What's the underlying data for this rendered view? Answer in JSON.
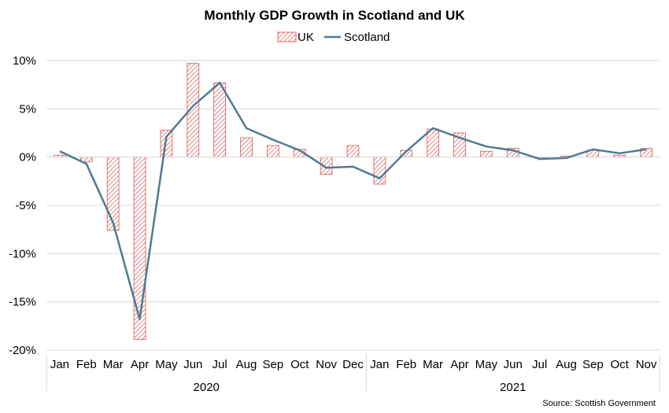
{
  "chart_data": {
    "type": "bar",
    "title": "Monthly GDP Growth in Scotland and UK",
    "source": "Source: Scottish Government",
    "legend": {
      "placement": "top-center"
    },
    "groups": [
      {
        "label": "2020",
        "months": [
          "Jan",
          "Feb",
          "Mar",
          "Apr",
          "May",
          "Jun",
          "Jul",
          "Aug",
          "Sep",
          "Oct",
          "Nov",
          "Dec"
        ]
      },
      {
        "label": "2021",
        "months": [
          "Jan",
          "Feb",
          "Mar",
          "Apr",
          "May",
          "Jun",
          "Jul",
          "Aug",
          "Sep",
          "Oct",
          "Nov"
        ]
      }
    ],
    "categories": [
      "Jan",
      "Feb",
      "Mar",
      "Apr",
      "May",
      "Jun",
      "Jul",
      "Aug",
      "Sep",
      "Oct",
      "Nov",
      "Dec",
      "Jan",
      "Feb",
      "Mar",
      "Apr",
      "May",
      "Jun",
      "Jul",
      "Aug",
      "Sep",
      "Oct",
      "Nov"
    ],
    "y_ticks": [
      "10%",
      "5%",
      "0%",
      "-5%",
      "-10%",
      "-15%",
      "-20%"
    ],
    "ylim": [
      -20,
      10
    ],
    "grid": true,
    "series": [
      {
        "name": "UK",
        "type": "bar",
        "color": "#e06666",
        "values": [
          0.2,
          -0.5,
          -7.6,
          -18.9,
          2.8,
          9.7,
          7.7,
          2.0,
          1.2,
          0.8,
          -1.8,
          1.2,
          -2.8,
          0.7,
          2.9,
          2.5,
          0.6,
          0.9,
          0.0,
          0.1,
          0.7,
          0.2,
          0.9
        ]
      },
      {
        "name": "Scotland",
        "type": "line",
        "color": "#4f7b92",
        "values": [
          0.6,
          -0.7,
          -6.8,
          -16.8,
          2.1,
          5.3,
          7.7,
          3.0,
          1.8,
          0.7,
          -1.1,
          -1.0,
          -2.2,
          0.6,
          3.0,
          2.0,
          1.1,
          0.7,
          -0.2,
          -0.1,
          0.8,
          0.4,
          0.8
        ]
      }
    ]
  }
}
